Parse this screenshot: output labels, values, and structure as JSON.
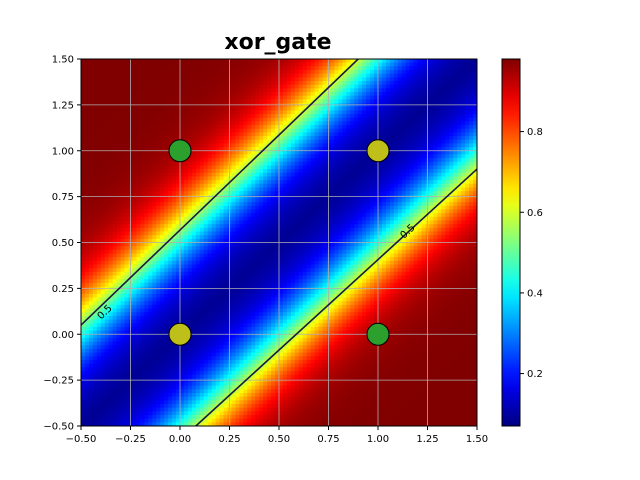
{
  "chart_data": {
    "type": "heatmap",
    "title": "xor_gate",
    "xlabel": "",
    "ylabel": "",
    "xlim": [
      -0.5,
      1.5
    ],
    "ylim": [
      -0.5,
      1.5
    ],
    "colormap": "jet",
    "grid": true,
    "x_ticks": [
      "−0.50",
      "−0.25",
      "0.00",
      "0.25",
      "0.50",
      "0.75",
      "1.00",
      "1.25",
      "1.50"
    ],
    "x_tick_values": [
      -0.5,
      -0.25,
      0,
      0.25,
      0.5,
      0.75,
      1.0,
      1.25,
      1.5
    ],
    "y_ticks": [
      "−0.50",
      "−0.25",
      "0.00",
      "0.25",
      "0.50",
      "0.75",
      "1.00",
      "1.25",
      "1.50"
    ],
    "y_tick_values": [
      -0.5,
      -0.25,
      0,
      0.25,
      0.5,
      0.75,
      1.0,
      1.25,
      1.5
    ],
    "colorbar": {
      "range": [
        0.07,
        0.98
      ],
      "ticks": [
        "0.2",
        "0.4",
        "0.6",
        "0.8"
      ],
      "tick_values": [
        0.2,
        0.4,
        0.6,
        0.8
      ]
    },
    "surface": {
      "description_of_field": "diagonal band of low values along x = y, high values toward top-left and bottom-right",
      "band_center_offset": 0,
      "contour_offset": 0.55,
      "steepness": 7
    },
    "contours": [
      {
        "level": 0.5,
        "label": "0.5",
        "line": [
          [
            -0.5,
            0.05
          ],
          [
            0.9,
            1.5
          ]
        ],
        "label_at": [
          -0.38,
          0.12
        ]
      },
      {
        "level": 0.5,
        "label": "0.5",
        "line": [
          [
            0.08,
            -0.5
          ],
          [
            1.5,
            0.9
          ]
        ],
        "label_at": [
          1.15,
          0.56
        ]
      }
    ],
    "points": [
      {
        "x": 0,
        "y": 0,
        "label": 0,
        "color": "#bfbf1a"
      },
      {
        "x": 0,
        "y": 1,
        "label": 1,
        "color": "#2ca02c"
      },
      {
        "x": 1,
        "y": 0,
        "label": 1,
        "color": "#2ca02c"
      },
      {
        "x": 1,
        "y": 1,
        "label": 0,
        "color": "#bfbf1a"
      }
    ]
  }
}
